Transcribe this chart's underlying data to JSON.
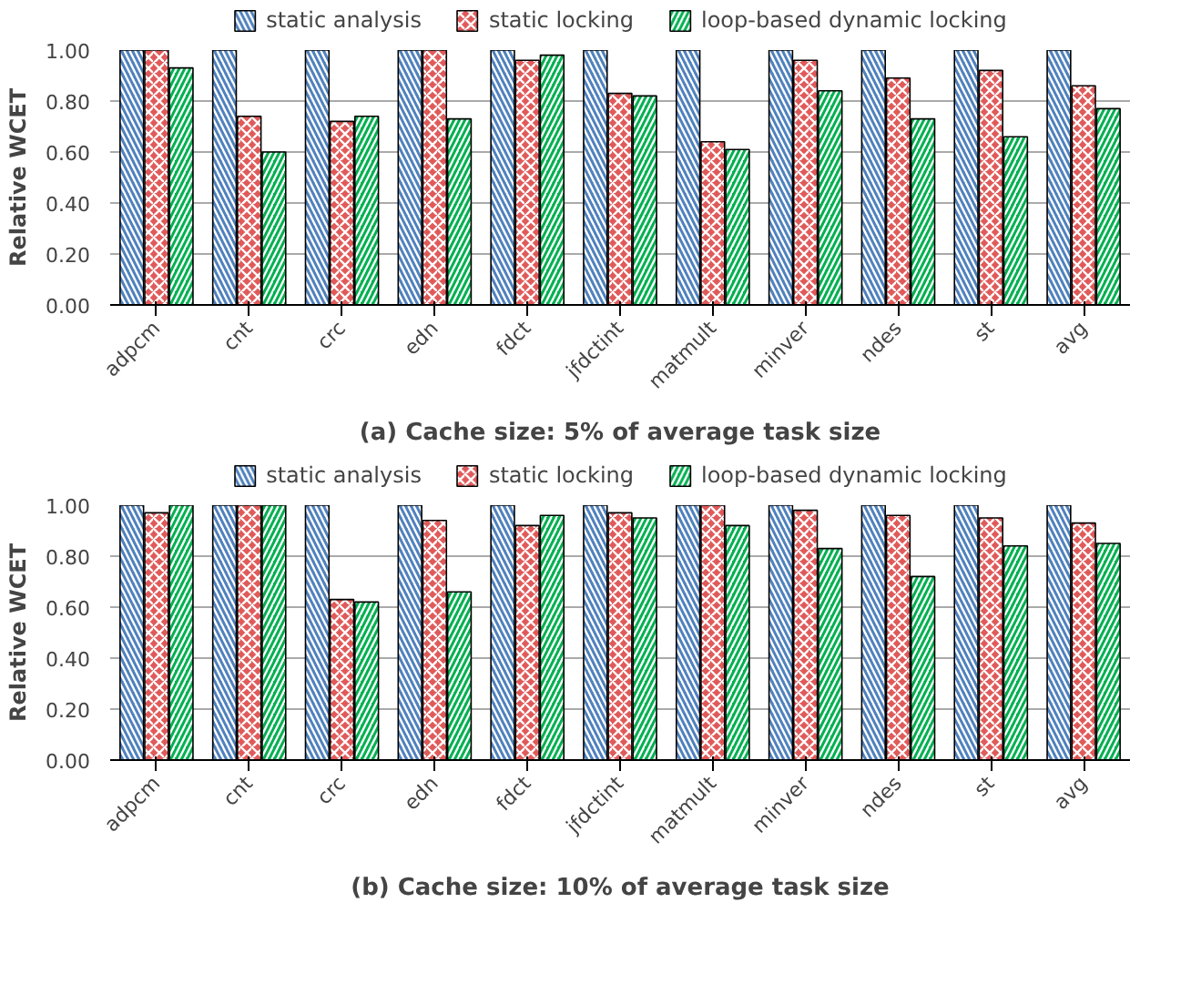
{
  "chart_data": [
    {
      "type": "bar",
      "title": "(a) Cache size: 5% of average task size",
      "ylabel": "Relative WCET",
      "categories": [
        "adpcm",
        "cnt",
        "crc",
        "edn",
        "fdct",
        "jfdctint",
        "matmult",
        "minver",
        "ndes",
        "st",
        "avg"
      ],
      "series": [
        {
          "name": "static analysis",
          "color": "#4f81bd",
          "values": [
            1,
            1,
            1,
            1,
            1,
            1,
            1,
            1,
            1,
            1,
            1
          ]
        },
        {
          "name": "static locking",
          "color": "#e05a5a",
          "values": [
            1,
            0.74,
            0.72,
            1,
            0.96,
            0.83,
            0.64,
            0.96,
            0.89,
            0.92,
            0.86
          ]
        },
        {
          "name": "loop-based dynamic locking",
          "color": "#00b050",
          "values": [
            0.93,
            0.6,
            0.74,
            0.73,
            0.98,
            0.82,
            0.61,
            0.84,
            0.73,
            0.66,
            0.77
          ]
        }
      ],
      "ylim": [
        0,
        1
      ],
      "yticks": [
        {
          "value": 0,
          "label": "0.00"
        },
        {
          "value": 0.2,
          "label": "0.20"
        },
        {
          "value": 0.4,
          "label": "0.40"
        },
        {
          "value": 0.6,
          "label": "0.60"
        },
        {
          "value": 0.8,
          "label": "0.80"
        },
        {
          "value": 1,
          "label": "1.00"
        }
      ],
      "grid": "y",
      "legend": "top"
    },
    {
      "type": "bar",
      "title": "(b) Cache size: 10% of average task size",
      "ylabel": "Relative WCET",
      "categories": [
        "adpcm",
        "cnt",
        "crc",
        "edn",
        "fdct",
        "jfdctint",
        "matmult",
        "minver",
        "ndes",
        "st",
        "avg"
      ],
      "series": [
        {
          "name": "static analysis",
          "color": "#4f81bd",
          "values": [
            1,
            1,
            1,
            1,
            1,
            1,
            1,
            1,
            1,
            1,
            1
          ]
        },
        {
          "name": "static locking",
          "color": "#e05a5a",
          "values": [
            0.97,
            1,
            0.63,
            0.94,
            0.92,
            0.97,
            1,
            0.98,
            0.96,
            0.95,
            0.93
          ]
        },
        {
          "name": "loop-based dynamic locking",
          "color": "#00b050",
          "values": [
            1,
            1,
            0.62,
            0.66,
            0.96,
            0.95,
            0.92,
            0.83,
            0.72,
            0.84,
            0.85
          ]
        }
      ],
      "ylim": [
        0,
        1
      ],
      "yticks": [
        {
          "value": 0,
          "label": "0.00"
        },
        {
          "value": 0.2,
          "label": "0.20"
        },
        {
          "value": 0.4,
          "label": "0.40"
        },
        {
          "value": 0.6,
          "label": "0.60"
        },
        {
          "value": 0.8,
          "label": "0.80"
        },
        {
          "value": 1,
          "label": "1.00"
        }
      ],
      "grid": "y",
      "legend": "top"
    }
  ]
}
